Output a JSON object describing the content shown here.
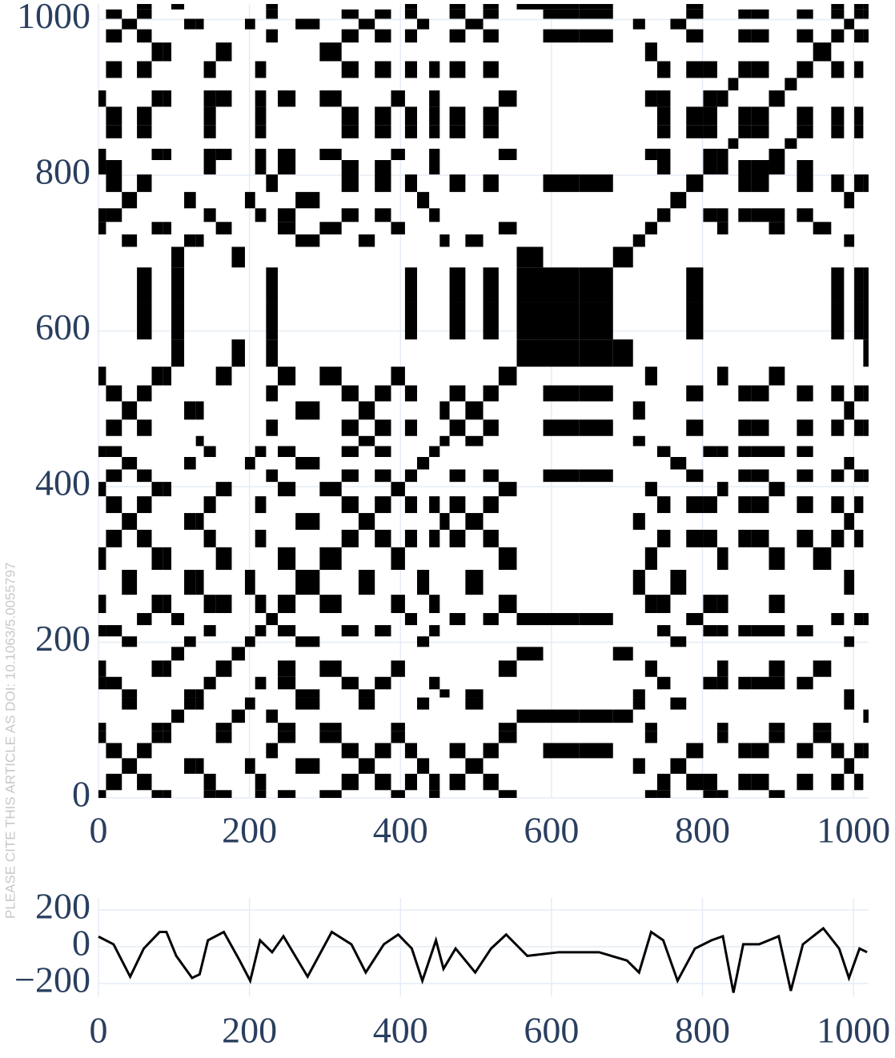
{
  "watermark": "PLEASE CITE THIS ARTICLE AS DOI: 10.1063/5.0055797",
  "chart_data": [
    {
      "type": "recurrence",
      "xlim": [
        0,
        1020
      ],
      "ylim": [
        0,
        1020
      ],
      "xticks": [
        0,
        200,
        400,
        600,
        800,
        1000
      ],
      "yticks": [
        0,
        200,
        400,
        600,
        800,
        1000
      ],
      "grid": true,
      "color": "#000000"
    },
    {
      "type": "line",
      "color": "#000000",
      "grid": true,
      "x": [
        0,
        20,
        42,
        60,
        81,
        90,
        103,
        124,
        134,
        145,
        166,
        187,
        201,
        214,
        230,
        245,
        277,
        309,
        335,
        354,
        378,
        397,
        415,
        429,
        447,
        457,
        473,
        499,
        520,
        540,
        568,
        610,
        663,
        700,
        716,
        732,
        748,
        767,
        790,
        812,
        827,
        841,
        854,
        875,
        901,
        917,
        933,
        960,
        981,
        994,
        1008,
        1018
      ],
      "values": [
        55,
        13,
        -163,
        -10,
        80,
        80,
        -50,
        -170,
        -150,
        35,
        80,
        -75,
        -185,
        35,
        -30,
        57,
        -163,
        80,
        13,
        -140,
        13,
        66,
        -10,
        -185,
        35,
        -120,
        -10,
        -140,
        -10,
        66,
        -50,
        -30,
        -30,
        -75,
        -140,
        80,
        35,
        -185,
        -10,
        35,
        57,
        -250,
        13,
        13,
        57,
        -240,
        13,
        100,
        -10,
        -170,
        -10,
        -30
      ],
      "xlim": [
        0,
        1020
      ],
      "ylim": [
        -270,
        265
      ],
      "xticks": [
        0,
        200,
        400,
        600,
        800,
        1000
      ],
      "yticks": [
        {
          "value": -200,
          "label": "−200"
        },
        0,
        200
      ]
    }
  ]
}
